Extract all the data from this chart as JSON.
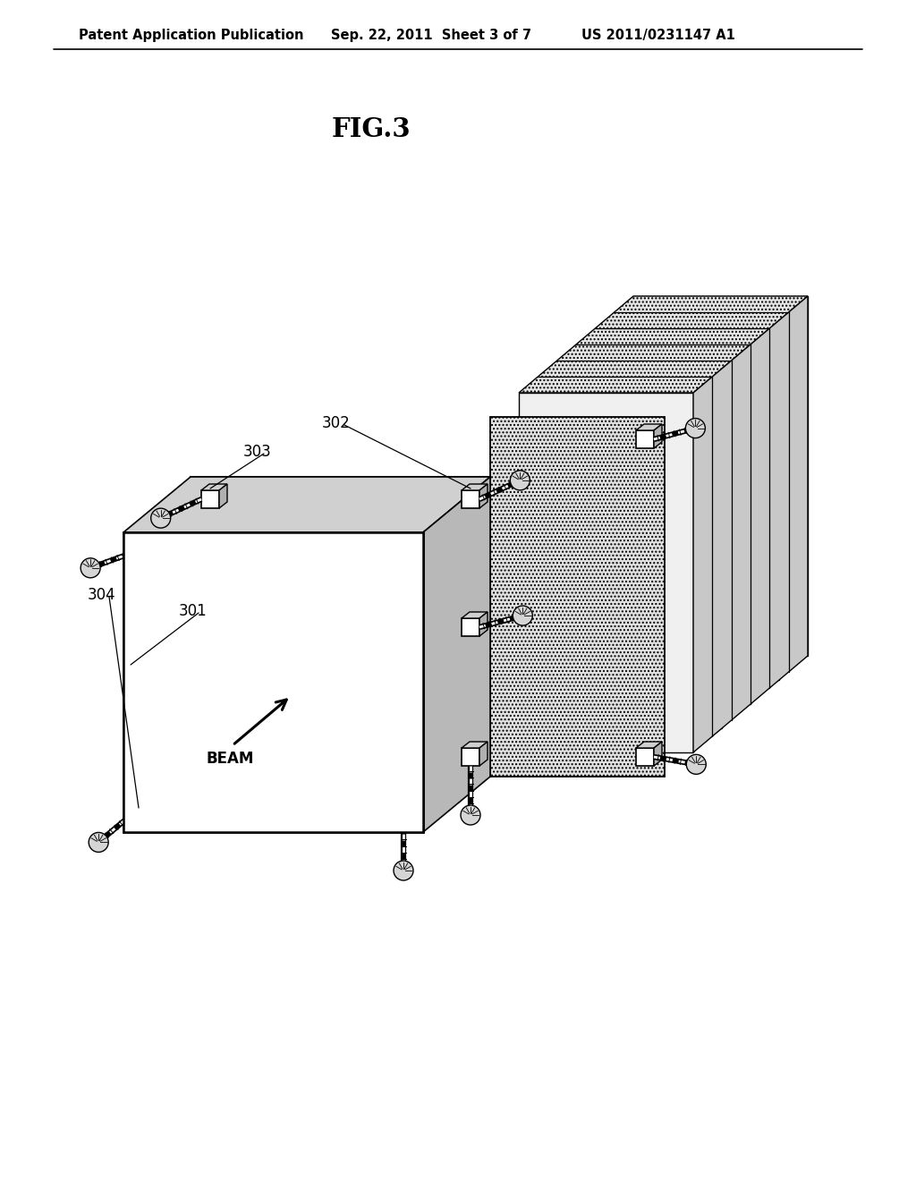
{
  "bg_color": "#ffffff",
  "header_text": "Patent Application Publication",
  "header_date": "Sep. 22, 2011  Sheet 3 of 7",
  "header_patent": "US 2011/0231147 A1",
  "figure_label": "FIG.3",
  "label_301": "301",
  "label_302": "302",
  "label_303": "303",
  "label_304": "304",
  "beam_label": "BEAM",
  "dot_fill": "#d8d8d8",
  "white": "#ffffff",
  "light_gray": "#e8e8e8",
  "med_gray": "#d0d0d0",
  "dark_gray": "#b8b8b8",
  "black": "#000000"
}
